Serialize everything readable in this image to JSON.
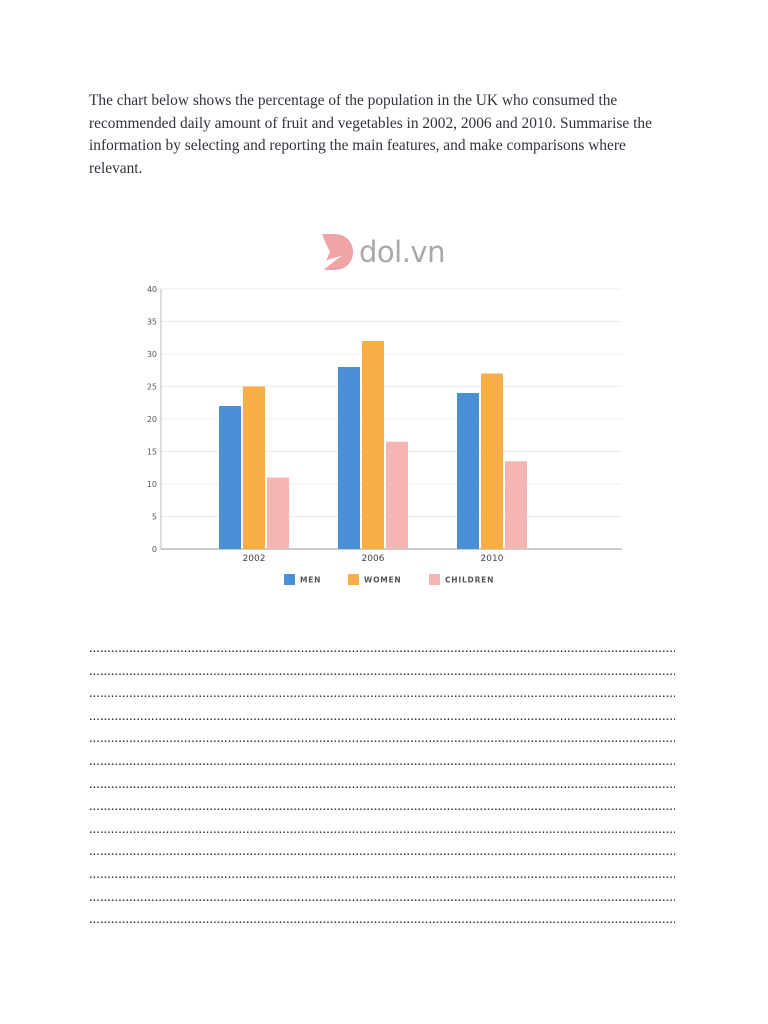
{
  "prompt": {
    "text": "The chart below shows the percentage of the population in the UK who consumed the recommended daily amount of fruit and vegetables in 2002, 2006 and 2010. Summarise the information by selecting and reporting the main features, and make comparisons where relevant."
  },
  "logo": {
    "text": "dol.vn",
    "mark_color": "#f2a3a8",
    "text_color": "#a7a9ad"
  },
  "chart_data": {
    "type": "bar",
    "title": "",
    "xlabel": "",
    "ylabel": "",
    "categories": [
      "2002",
      "2006",
      "2010"
    ],
    "series": [
      {
        "name": "MEN",
        "color": "#4a90d6",
        "values": [
          22,
          28,
          24
        ]
      },
      {
        "name": "WOMEN",
        "color": "#f8ad45",
        "values": [
          25,
          32,
          27
        ]
      },
      {
        "name": "CHILDREN",
        "color": "#f6b5b5",
        "values": [
          11,
          16.5,
          13.5
        ]
      }
    ],
    "ylim": [
      0,
      40
    ],
    "yticks": [
      0,
      5,
      10,
      15,
      20,
      25,
      30,
      35,
      40
    ],
    "grid": true,
    "legend_position": "bottom"
  },
  "answer_area": {
    "line_count": 13,
    "dots": "........................................................................................................................................................................"
  }
}
